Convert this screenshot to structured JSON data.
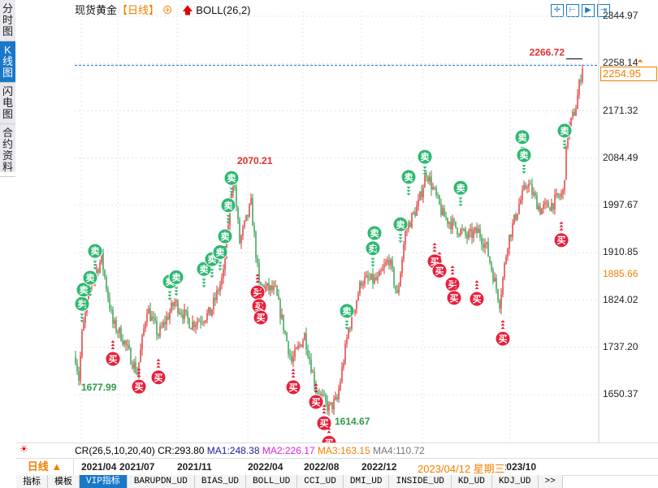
{
  "left_tabs": [
    "分时图",
    "K线图",
    "闪电图",
    "合约资料"
  ],
  "header": {
    "symbol": "现货黄金",
    "timeframe": "【日线】",
    "indicator": "BOLL(26,2)"
  },
  "toolbar_icons": [
    "crosshair-icon",
    "range-icon",
    "play-range-icon",
    "jump-end-icon"
  ],
  "price_axis": [
    "2344.97",
    "2258.14",
    "2171.32",
    "2084.49",
    "1997.67",
    "1910.85",
    "1824.02",
    "1737.20",
    "1650.37"
  ],
  "current_price": "2254.95",
  "marker_price": "1885.66",
  "labels": {
    "high": "2266.72",
    "peak2021": "2070.21",
    "low2021": "1677.99",
    "low2022": "1614.67"
  },
  "indicator_line": {
    "name": "CR(26,5,10,20,40)",
    "cr": "CR:293.80",
    "ma1": "MA1:248.38",
    "ma2": "MA2:226.17",
    "ma3": "MA3:163.15",
    "ma4": "MA4:110.72"
  },
  "period": {
    "label": "日线",
    "arrow": "▲"
  },
  "dates": [
    "2021/04",
    "2021/07",
    "2021/11",
    "2022/04",
    "2022/08",
    "2022/12",
    "2023/10"
  ],
  "cursor_date": "2023/04/12 星期三",
  "bottom_tabs": [
    "指标",
    "模板",
    "VIP指标",
    "BARUPDN_UD",
    "BIAS_UD",
    "BOLL_UD",
    "CCI_UD",
    "DMI_UD",
    "INSIDE_UD",
    "KD_UD",
    "KDJ_UD",
    ">>"
  ],
  "signal_labels": {
    "buy": "买",
    "sell": "卖"
  },
  "colors": {
    "up": "#e03030",
    "down": "#2e9a48",
    "accent": "#1a78c9",
    "orange": "#f08000"
  },
  "chart_data": {
    "type": "candlestick",
    "ylim": [
      1650.37,
      2344.97
    ],
    "path": [
      [
        0,
        1720
      ],
      [
        2,
        1680
      ],
      [
        4,
        1760
      ],
      [
        9,
        1850
      ],
      [
        16,
        1900
      ],
      [
        23,
        1780
      ],
      [
        28,
        1760
      ],
      [
        38,
        1690
      ],
      [
        44,
        1810
      ],
      [
        51,
        1760
      ],
      [
        61,
        1820
      ],
      [
        71,
        1780
      ],
      [
        83,
        1800
      ],
      [
        91,
        1870
      ],
      [
        97,
        2060
      ],
      [
        101,
        1930
      ],
      [
        108,
        2000
      ],
      [
        113,
        1850
      ],
      [
        123,
        1840
      ],
      [
        133,
        1710
      ],
      [
        141,
        1760
      ],
      [
        148,
        1660
      ],
      [
        156,
        1625
      ],
      [
        161,
        1640
      ],
      [
        168,
        1770
      ],
      [
        176,
        1860
      ],
      [
        186,
        1860
      ],
      [
        193,
        1900
      ],
      [
        198,
        1830
      ],
      [
        203,
        1950
      ],
      [
        211,
        2000
      ],
      [
        216,
        2060
      ],
      [
        226,
        1980
      ],
      [
        233,
        1960
      ],
      [
        241,
        1940
      ],
      [
        248,
        1950
      ],
      [
        253,
        1920
      ],
      [
        261,
        1820
      ],
      [
        266,
        1930
      ],
      [
        273,
        2000
      ],
      [
        278,
        2040
      ],
      [
        286,
        1990
      ],
      [
        293,
        2000
      ],
      [
        300,
        2020
      ],
      [
        303,
        2130
      ],
      [
        308,
        2180
      ],
      [
        312,
        2255
      ]
    ],
    "sell_signals": [
      [
        4,
        1817
      ],
      [
        5,
        1843
      ],
      [
        9,
        1865
      ],
      [
        12,
        1914
      ],
      [
        58,
        1858
      ],
      [
        62,
        1866
      ],
      [
        79,
        1881
      ],
      [
        84,
        1899
      ],
      [
        89,
        1912
      ],
      [
        92,
        1941
      ],
      [
        94,
        1998
      ],
      [
        96,
        2048
      ],
      [
        167,
        1804
      ],
      [
        183,
        1919
      ],
      [
        184,
        1947
      ],
      [
        200,
        1963
      ],
      [
        205,
        2050
      ],
      [
        215,
        2087
      ],
      [
        237,
        2030
      ],
      [
        275,
        2123
      ],
      [
        276,
        2090
      ],
      [
        301,
        2135
      ]
    ],
    "buy_signals": [
      [
        23,
        1716
      ],
      [
        39,
        1665
      ],
      [
        51,
        1682
      ],
      [
        112,
        1838
      ],
      [
        113,
        1813
      ],
      [
        114,
        1792
      ],
      [
        134,
        1664
      ],
      [
        148,
        1637
      ],
      [
        153,
        1598
      ],
      [
        156,
        1562
      ],
      [
        221,
        1895
      ],
      [
        224,
        1878
      ],
      [
        232,
        1853
      ],
      [
        233,
        1828
      ],
      [
        247,
        1826
      ],
      [
        263,
        1753
      ],
      [
        299,
        1934
      ]
    ]
  }
}
